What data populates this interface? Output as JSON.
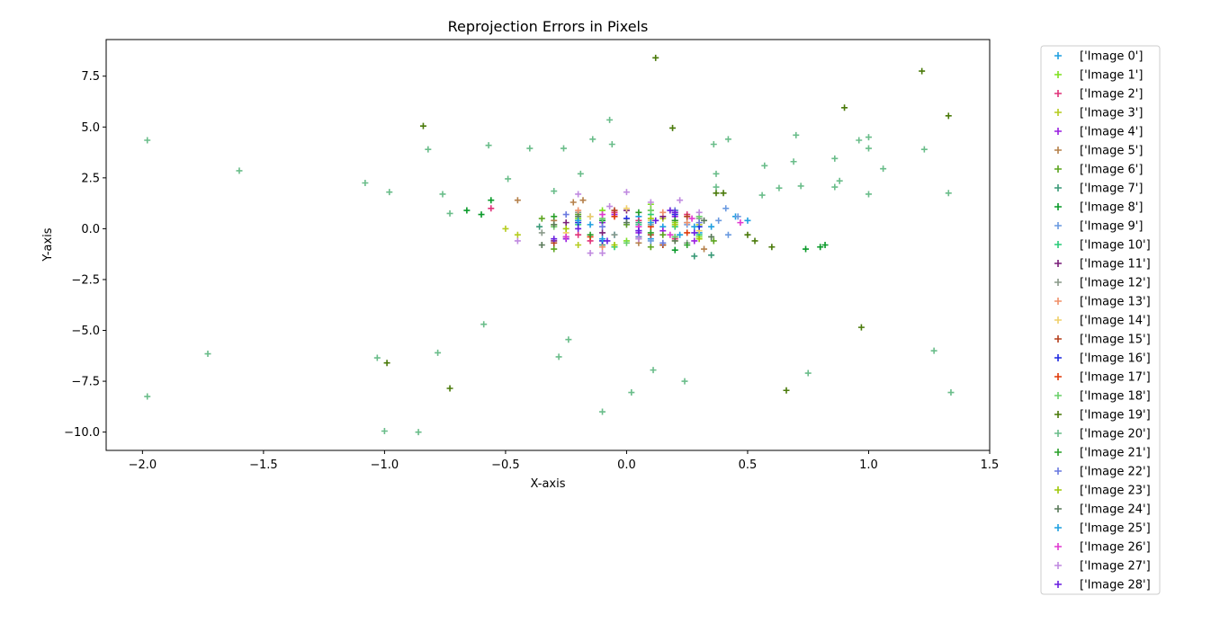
{
  "chart_data": {
    "type": "scatter",
    "title": "Reprojection Errors in Pixels",
    "xlabel": "X-axis",
    "ylabel": "Y-axis",
    "xlim": [
      -2.15,
      1.5
    ],
    "ylim": [
      -10.9,
      9.3
    ],
    "x_ticks": [
      -2.0,
      -1.5,
      -1.0,
      -0.5,
      0.0,
      0.5,
      1.0,
      1.5
    ],
    "x_tick_labels": [
      "−2.0",
      "−1.5",
      "−1.0",
      "−0.5",
      "0.0",
      "0.5",
      "1.0",
      "1.5"
    ],
    "y_ticks": [
      -10.0,
      -7.5,
      -5.0,
      -2.5,
      0.0,
      2.5,
      5.0,
      7.5
    ],
    "y_tick_labels": [
      "−10.0",
      "−7.5",
      "−5.0",
      "−2.5",
      "0.0",
      "2.5",
      "5.0",
      "7.5"
    ],
    "grid": false,
    "marker": "+",
    "legend_position": "outside-right",
    "series": [
      {
        "name": "['Image 0']",
        "color": "#1f9fe0",
        "points": [
          [
            0.5,
            0.4
          ],
          [
            0.45,
            0.6
          ],
          [
            0.3,
            -0.2
          ],
          [
            0.15,
            0.1
          ],
          [
            0.25,
            0.3
          ],
          [
            -0.05,
            -0.3
          ],
          [
            0.1,
            -0.5
          ],
          [
            -0.15,
            0.2
          ],
          [
            0.35,
            0.1
          ],
          [
            0.05,
            0.6
          ]
        ]
      },
      {
        "name": "['Image 1']",
        "color": "#7fe01f",
        "points": [
          [
            0.1,
            1.2
          ],
          [
            -0.2,
            0.5
          ],
          [
            0.0,
            -0.6
          ],
          [
            0.2,
            0.3
          ],
          [
            -0.1,
            0.9
          ],
          [
            0.3,
            -0.4
          ],
          [
            0.15,
            -0.8
          ],
          [
            -0.3,
            0.2
          ]
        ]
      },
      {
        "name": "['Image 2']",
        "color": "#e0327a",
        "points": [
          [
            -0.56,
            1.0
          ],
          [
            -0.2,
            -0.3
          ],
          [
            0.05,
            0.4
          ],
          [
            0.2,
            -0.5
          ],
          [
            -0.05,
            0.8
          ],
          [
            0.25,
            0.7
          ],
          [
            -0.15,
            -0.6
          ]
        ]
      },
      {
        "name": "['Image 3']",
        "color": "#b5cc1f",
        "points": [
          [
            -0.5,
            0.0
          ],
          [
            -0.45,
            -0.3
          ],
          [
            0.1,
            0.9
          ],
          [
            0.3,
            0.2
          ],
          [
            -0.2,
            -0.8
          ],
          [
            0.05,
            -0.4
          ],
          [
            0.15,
            0.5
          ]
        ]
      },
      {
        "name": "['Image 4']",
        "color": "#9a1fe0",
        "points": [
          [
            -0.1,
            0.3
          ],
          [
            0.05,
            -0.2
          ],
          [
            0.2,
            0.6
          ],
          [
            -0.25,
            -0.5
          ],
          [
            0.15,
            -0.1
          ],
          [
            -0.05,
            0.7
          ],
          [
            0.28,
            -0.6
          ]
        ]
      },
      {
        "name": "['Image 5']",
        "color": "#b5804a",
        "points": [
          [
            -0.45,
            1.4
          ],
          [
            -0.22,
            1.3
          ],
          [
            -0.18,
            1.4
          ],
          [
            0.05,
            -0.7
          ],
          [
            -0.3,
            0.4
          ],
          [
            0.2,
            0.8
          ],
          [
            0.32,
            -1.0
          ]
        ]
      },
      {
        "name": "['Image 6']",
        "color": "#5ca51f",
        "points": [
          [
            -0.3,
            -1.0
          ],
          [
            -0.2,
            0.7
          ],
          [
            0.1,
            -0.9
          ],
          [
            0.0,
            0.2
          ],
          [
            -0.35,
            0.5
          ],
          [
            0.15,
            -0.3
          ],
          [
            0.36,
            -0.6
          ]
        ]
      },
      {
        "name": "['Image 7']",
        "color": "#3a9a78",
        "points": [
          [
            0.35,
            -1.3
          ],
          [
            0.28,
            -1.35
          ],
          [
            -0.36,
            0.1
          ],
          [
            -0.1,
            -0.8
          ],
          [
            0.2,
            0.9
          ],
          [
            0.05,
            0.3
          ],
          [
            -0.25,
            -0.4
          ]
        ]
      },
      {
        "name": "['Image 8']",
        "color": "#0a9a2a",
        "points": [
          [
            -0.66,
            0.9
          ],
          [
            -0.6,
            0.7
          ],
          [
            -0.56,
            1.4
          ],
          [
            0.74,
            -1.0
          ],
          [
            0.8,
            -0.9
          ],
          [
            0.82,
            -0.8
          ],
          [
            0.2,
            -1.05
          ],
          [
            -0.1,
            0.4
          ]
        ]
      },
      {
        "name": "['Image 9']",
        "color": "#6a9ae0",
        "points": [
          [
            0.41,
            1.0
          ],
          [
            0.38,
            0.4
          ],
          [
            0.42,
            -0.3
          ],
          [
            -0.15,
            0.6
          ],
          [
            0.1,
            -0.6
          ],
          [
            0.25,
            0.2
          ],
          [
            0.46,
            0.6
          ]
        ]
      },
      {
        "name": "['Image 10']",
        "color": "#2acb7a",
        "points": [
          [
            0.2,
            0.1
          ],
          [
            -0.05,
            -0.9
          ],
          [
            0.1,
            0.7
          ],
          [
            -0.2,
            0.2
          ],
          [
            0.3,
            -0.3
          ],
          [
            0.05,
            0.2
          ]
        ]
      },
      {
        "name": "['Image 11']",
        "color": "#7a1f7a",
        "points": [
          [
            -0.1,
            -0.2
          ],
          [
            0.15,
            0.6
          ],
          [
            -0.3,
            -0.6
          ],
          [
            0.2,
            -0.4
          ],
          [
            0.0,
            0.9
          ],
          [
            -0.25,
            0.3
          ]
        ]
      },
      {
        "name": "['Image 12']",
        "color": "#8a9a8a",
        "points": [
          [
            -0.05,
            -0.3
          ],
          [
            0.1,
            0.2
          ],
          [
            -0.2,
            0.8
          ],
          [
            0.25,
            -0.7
          ],
          [
            -0.35,
            -0.2
          ],
          [
            0.3,
            0.5
          ]
        ]
      },
      {
        "name": "['Image 13']",
        "color": "#f0906a",
        "points": [
          [
            -0.2,
            0.9
          ],
          [
            0.05,
            -0.5
          ],
          [
            0.25,
            0.3
          ],
          [
            -0.1,
            -0.9
          ],
          [
            0.15,
            0.8
          ],
          [
            -0.3,
            0.1
          ]
        ]
      },
      {
        "name": "['Image 14']",
        "color": "#f0d06a",
        "points": [
          [
            0.0,
            1.0
          ],
          [
            -0.25,
            -0.2
          ],
          [
            0.2,
            -0.6
          ],
          [
            0.1,
            0.4
          ],
          [
            -0.15,
            0.6
          ],
          [
            0.3,
            -0.1
          ]
        ]
      },
      {
        "name": "['Image 15']",
        "color": "#b5401f",
        "points": [
          [
            -0.2,
            0.4
          ],
          [
            0.1,
            -0.3
          ],
          [
            -0.05,
            0.9
          ],
          [
            0.25,
            0.6
          ],
          [
            -0.3,
            -0.7
          ],
          [
            0.15,
            -0.8
          ]
        ]
      },
      {
        "name": "['Image 16']",
        "color": "#1f2ae0",
        "points": [
          [
            0.05,
            -0.1
          ],
          [
            -0.2,
            0.3
          ],
          [
            0.2,
            0.7
          ],
          [
            -0.1,
            -0.6
          ],
          [
            0.3,
            0.1
          ],
          [
            0.0,
            0.5
          ]
        ]
      },
      {
        "name": "['Image 17']",
        "color": "#e03a0a",
        "points": [
          [
            0.1,
            0.1
          ],
          [
            -0.15,
            -0.4
          ],
          [
            0.25,
            -0.2
          ],
          [
            -0.05,
            0.6
          ],
          [
            0.2,
            0.4
          ]
        ]
      },
      {
        "name": "['Image 18']",
        "color": "#6ad06a",
        "points": [
          [
            -0.1,
            0.5
          ],
          [
            0.2,
            -0.4
          ],
          [
            0.0,
            -0.7
          ],
          [
            -0.3,
            0.1
          ],
          [
            0.3,
            0.6
          ],
          [
            0.1,
            0.9
          ]
        ]
      },
      {
        "name": "['Image 19']",
        "color": "#4a7a0a",
        "points": [
          [
            0.12,
            8.4
          ],
          [
            -0.84,
            5.05
          ],
          [
            0.19,
            4.95
          ],
          [
            0.9,
            5.95
          ],
          [
            1.22,
            7.75
          ],
          [
            1.33,
            5.55
          ],
          [
            -0.99,
            -6.6
          ],
          [
            -0.73,
            -7.85
          ],
          [
            0.66,
            -7.95
          ],
          [
            0.97,
            -4.85
          ],
          [
            0.37,
            1.75
          ],
          [
            0.4,
            1.75
          ],
          [
            0.6,
            -0.9
          ],
          [
            0.5,
            -0.3
          ],
          [
            0.53,
            -0.6
          ]
        ]
      },
      {
        "name": "['Image 20']",
        "color": "#6abd8a",
        "points": [
          [
            -1.98,
            4.35
          ],
          [
            -1.6,
            2.85
          ],
          [
            -1.08,
            2.25
          ],
          [
            -0.98,
            1.8
          ],
          [
            -0.82,
            3.9
          ],
          [
            -0.76,
            1.7
          ],
          [
            -0.73,
            0.75
          ],
          [
            -0.57,
            4.1
          ],
          [
            -0.49,
            2.45
          ],
          [
            -0.4,
            3.95
          ],
          [
            -0.3,
            1.85
          ],
          [
            -0.26,
            3.95
          ],
          [
            -0.19,
            2.7
          ],
          [
            -0.14,
            4.4
          ],
          [
            -0.07,
            5.35
          ],
          [
            -0.06,
            4.15
          ],
          [
            0.36,
            4.15
          ],
          [
            0.37,
            2.7
          ],
          [
            0.37,
            2.05
          ],
          [
            0.42,
            4.4
          ],
          [
            0.56,
            1.65
          ],
          [
            0.57,
            3.1
          ],
          [
            0.63,
            2.0
          ],
          [
            0.69,
            3.3
          ],
          [
            0.7,
            4.6
          ],
          [
            0.72,
            2.1
          ],
          [
            0.86,
            2.05
          ],
          [
            0.86,
            3.45
          ],
          [
            0.88,
            2.35
          ],
          [
            0.96,
            4.35
          ],
          [
            1.0,
            3.95
          ],
          [
            1.0,
            1.7
          ],
          [
            1.0,
            4.5
          ],
          [
            1.06,
            2.95
          ],
          [
            1.23,
            3.9
          ],
          [
            1.33,
            1.75
          ],
          [
            -1.98,
            -8.25
          ],
          [
            -1.73,
            -6.15
          ],
          [
            -1.03,
            -6.35
          ],
          [
            -1.0,
            -9.95
          ],
          [
            -0.86,
            -10.0
          ],
          [
            -0.78,
            -6.1
          ],
          [
            -0.59,
            -4.7
          ],
          [
            -0.28,
            -6.3
          ],
          [
            -0.24,
            -5.45
          ],
          [
            -0.1,
            -9.0
          ],
          [
            0.02,
            -8.05
          ],
          [
            0.11,
            -6.95
          ],
          [
            0.24,
            -7.5
          ],
          [
            0.75,
            -7.1
          ],
          [
            1.27,
            -6.0
          ],
          [
            1.34,
            -8.05
          ]
        ]
      },
      {
        "name": "['Image 21']",
        "color": "#2aa02a",
        "points": [
          [
            0.2,
            0.4
          ],
          [
            -0.15,
            -0.3
          ],
          [
            0.05,
            0.8
          ],
          [
            -0.3,
            0.6
          ],
          [
            0.25,
            -0.8
          ],
          [
            0.1,
            -0.2
          ]
        ]
      },
      {
        "name": "['Image 22']",
        "color": "#6a7ae0",
        "points": [
          [
            0.3,
            0.3
          ],
          [
            -0.1,
            0.1
          ],
          [
            0.15,
            -0.7
          ],
          [
            -0.25,
            0.7
          ],
          [
            0.05,
            -0.4
          ],
          [
            0.2,
            0.9
          ]
        ]
      },
      {
        "name": "['Image 23']",
        "color": "#a0c80a",
        "points": [
          [
            -0.25,
            0.0
          ],
          [
            0.1,
            0.5
          ],
          [
            -0.05,
            -0.8
          ],
          [
            0.2,
            0.2
          ],
          [
            0.3,
            -0.5
          ]
        ]
      },
      {
        "name": "['Image 24']",
        "color": "#5a7a5a",
        "points": [
          [
            -0.3,
            0.2
          ],
          [
            -0.35,
            -0.8
          ],
          [
            0.35,
            -0.4
          ],
          [
            0.0,
            0.3
          ],
          [
            0.2,
            -0.6
          ],
          [
            -0.2,
            0.6
          ],
          [
            0.32,
            0.4
          ]
        ]
      },
      {
        "name": "['Image 25']",
        "color": "#1fa0e0",
        "points": [
          [
            0.28,
            0.1
          ],
          [
            -0.1,
            -0.5
          ],
          [
            0.1,
            0.3
          ],
          [
            -0.2,
            0.4
          ],
          [
            0.22,
            -0.3
          ]
        ]
      },
      {
        "name": "['Image 26']",
        "color": "#e03ad0",
        "points": [
          [
            0.18,
            -0.3
          ],
          [
            -0.1,
            0.7
          ],
          [
            0.05,
            0.1
          ],
          [
            -0.25,
            -0.4
          ],
          [
            0.27,
            0.5
          ],
          [
            0.47,
            0.3
          ]
        ]
      },
      {
        "name": "['Image 27']",
        "color": "#c08ae0",
        "points": [
          [
            -0.45,
            -0.6
          ],
          [
            -0.2,
            1.7
          ],
          [
            -0.07,
            1.1
          ],
          [
            0.0,
            1.8
          ],
          [
            0.1,
            1.3
          ],
          [
            0.22,
            1.4
          ],
          [
            -0.15,
            -1.2
          ],
          [
            -0.1,
            -1.2
          ],
          [
            0.05,
            -0.5
          ],
          [
            0.3,
            0.8
          ]
        ]
      },
      {
        "name": "['Image 28']",
        "color": "#6a1fe0",
        "points": [
          [
            -0.08,
            -0.6
          ],
          [
            0.12,
            0.4
          ],
          [
            0.2,
            0.8
          ],
          [
            -0.2,
            0.0
          ],
          [
            0.28,
            -0.2
          ],
          [
            -0.3,
            -0.5
          ],
          [
            0.05,
            -0.1
          ],
          [
            0.18,
            0.9
          ]
        ]
      }
    ]
  }
}
